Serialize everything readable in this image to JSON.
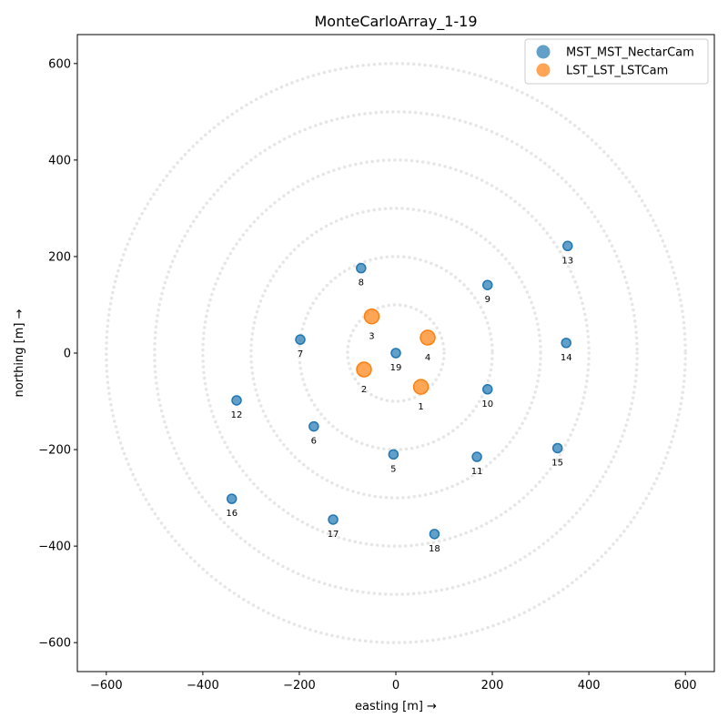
{
  "chart_data": {
    "type": "scatter",
    "title": "MonteCarloArray_1-19",
    "xlabel": "easting [m] →",
    "ylabel": "northing [m] →",
    "xlim": [
      -660,
      660
    ],
    "ylim": [
      -660,
      660
    ],
    "xticks": [
      -600,
      -400,
      -200,
      0,
      200,
      400,
      600
    ],
    "yticks": [
      -600,
      -400,
      -200,
      0,
      200,
      400,
      600
    ],
    "xtick_labels": [
      "−600",
      "−400",
      "−200",
      "0",
      "200",
      "400",
      "600"
    ],
    "ytick_labels": [
      "−600",
      "−400",
      "−200",
      "0",
      "200",
      "400",
      "600"
    ],
    "grid": false,
    "reference_circles": [
      100,
      200,
      300,
      400,
      500,
      600
    ],
    "legend_position": "top-right",
    "series": [
      {
        "name": "MST_MST_NectarCam",
        "color": "#1f77b4",
        "points": [
          {
            "label": "5",
            "x": -5,
            "y": -210
          },
          {
            "label": "6",
            "x": -170,
            "y": -152
          },
          {
            "label": "7",
            "x": -198,
            "y": 28
          },
          {
            "label": "8",
            "x": -72,
            "y": 176
          },
          {
            "label": "9",
            "x": 190,
            "y": 141
          },
          {
            "label": "10",
            "x": 190,
            "y": -75
          },
          {
            "label": "11",
            "x": 168,
            "y": -215
          },
          {
            "label": "12",
            "x": -330,
            "y": -98
          },
          {
            "label": "13",
            "x": 356,
            "y": 222
          },
          {
            "label": "14",
            "x": 353,
            "y": 21
          },
          {
            "label": "15",
            "x": 335,
            "y": -197
          },
          {
            "label": "16",
            "x": -340,
            "y": -302
          },
          {
            "label": "17",
            "x": -130,
            "y": -345
          },
          {
            "label": "18",
            "x": 80,
            "y": -375
          },
          {
            "label": "19",
            "x": 0,
            "y": 0
          }
        ]
      },
      {
        "name": "LST_LST_LSTCam",
        "color": "#ff7f0e",
        "points": [
          {
            "label": "1",
            "x": 52,
            "y": -70
          },
          {
            "label": "2",
            "x": -66,
            "y": -34
          },
          {
            "label": "3",
            "x": -50,
            "y": 76
          },
          {
            "label": "4",
            "x": 66,
            "y": 32
          }
        ]
      }
    ]
  }
}
